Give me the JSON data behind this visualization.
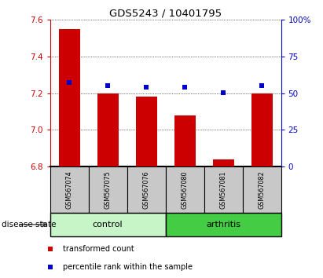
{
  "title": "GDS5243 / 10401795",
  "samples": [
    "GSM567074",
    "GSM567075",
    "GSM567076",
    "GSM567080",
    "GSM567081",
    "GSM567082"
  ],
  "red_values": [
    7.55,
    7.2,
    7.18,
    7.08,
    6.84,
    7.2
  ],
  "blue_values": [
    57.5,
    55.0,
    54.0,
    54.0,
    50.5,
    55.0
  ],
  "ylim_left": [
    6.8,
    7.6
  ],
  "ylim_right": [
    0,
    100
  ],
  "yticks_left": [
    6.8,
    7.0,
    7.2,
    7.4,
    7.6
  ],
  "yticks_right": [
    0,
    25,
    50,
    75,
    100
  ],
  "ytick_labels_right": [
    "0",
    "25",
    "50",
    "75",
    "100%"
  ],
  "bar_bottom": 6.8,
  "bar_color": "#cc0000",
  "dot_color": "#0000cc",
  "group_colors": [
    "#c8f5c8",
    "#44cc44"
  ],
  "group_labels": [
    "control",
    "arthritis"
  ],
  "group_ranges": [
    [
      0,
      3
    ],
    [
      3,
      6
    ]
  ],
  "disease_state_label": "disease state",
  "legend_items": [
    "transformed count",
    "percentile rank within the sample"
  ],
  "legend_colors": [
    "#cc0000",
    "#0000cc"
  ],
  "tick_label_color_left": "#cc0000",
  "tick_label_color_right": "#0000cc",
  "sample_bg_color": "#c8c8c8"
}
